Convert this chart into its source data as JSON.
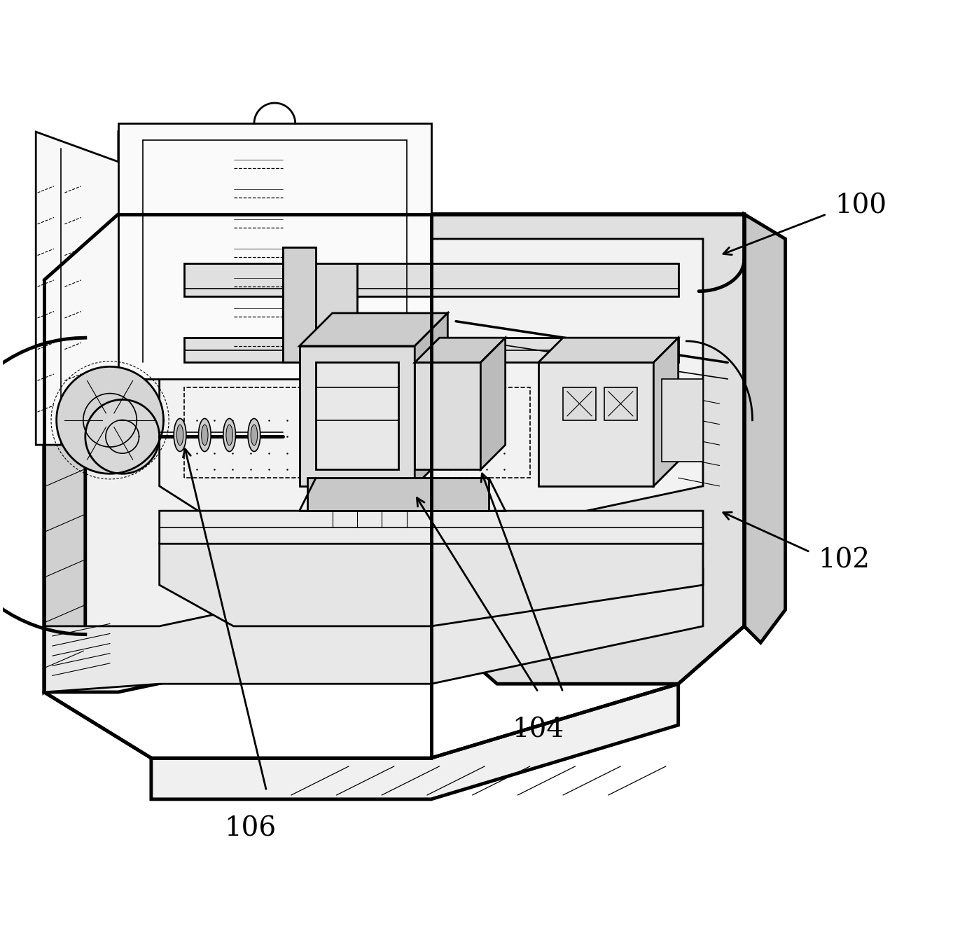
{
  "background_color": "#ffffff",
  "line_color": "#000000",
  "label_100": "100",
  "label_102": "102",
  "label_104": "104",
  "label_106": "106",
  "label_fontsize": 28,
  "lw_main": 2.0,
  "lw_thick": 3.5,
  "lw_thin": 1.2,
  "lw_vthick": 5.0
}
